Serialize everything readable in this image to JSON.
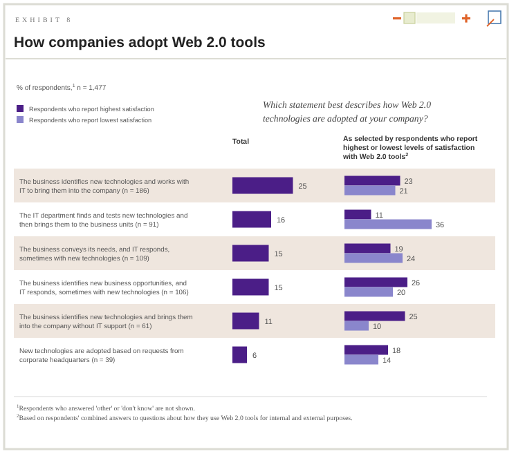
{
  "chart_data": [
    {
      "type": "bar",
      "orientation": "horizontal",
      "title": "How companies adopt Web 2.0 tools",
      "subtitle": "% of respondents,$^{1}$ n = 1,477",
      "xlabel": "Total",
      "categories": [
        "The business identifies new technologies and works with IT to bring them into the company (n = 186)",
        "The IT department finds and tests new technologies and then brings them to the business units (n = 91)",
        "The business conveys its needs, and IT responds, sometimes with new technologies (n = 109)",
        "The business identifies new business opportunities, and IT responds, sometimes with new technologies (n = 106)",
        "The business identifies new technologies and brings them into the company without IT support (n = 61)",
        "New technologies are adopted based on requests from corporate headquarters (n = 39)"
      ],
      "values": [
        25,
        16,
        15,
        15,
        11,
        6
      ],
      "color": "#4b1e87",
      "data_labels": true,
      "annotations": [
        "EXHIBIT 8",
        "Which statement best describes how Web 2.0 technologies are adopted at your company?",
        "$^{1}$Respondents who answered 'other' or 'don't know' are not shown.",
        "$^{2}$Based on respondents' combined answers to questions about how they use Web 2.0 tools for internal and external purposes."
      ]
    },
    {
      "type": "bar",
      "orientation": "horizontal",
      "title": "As selected by respondents who report highest or lowest levels of satisfaction with Web 2.0 tools$^{2}$",
      "categories": [
        null,
        null,
        null,
        null,
        null,
        null
      ],
      "legend": "top left",
      "data_labels": true,
      "series": [
        {
          "name": "Respondents who report highest satisfaction",
          "color": "#4b1e87",
          "values": [
            23,
            11,
            19,
            26,
            25,
            18
          ]
        },
        {
          "name": "Respondents who report lowest satisfaction",
          "color": "#8a86cc",
          "values": [
            21,
            36,
            24,
            20,
            10,
            14
          ]
        }
      ]
    }
  ]
}
